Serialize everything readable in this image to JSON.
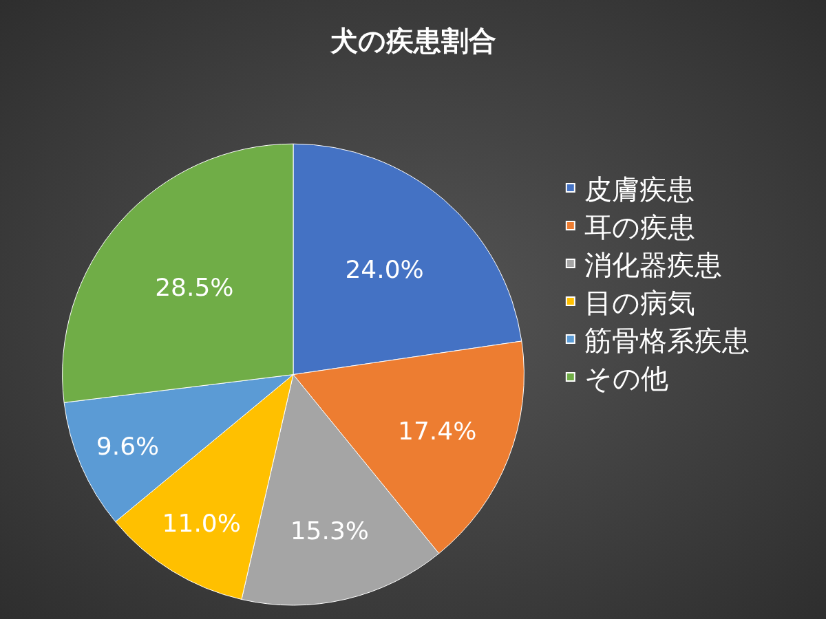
{
  "chart_data": {
    "type": "pie",
    "title": "犬の疾患割合",
    "categories": [
      "皮膚疾患",
      "耳の疾患",
      "消化器疾患",
      "目の病気",
      "筋骨格系疾患",
      "その他"
    ],
    "values": [
      24.0,
      17.4,
      15.3,
      11.0,
      9.6,
      28.5
    ],
    "colors": [
      "#4472c4",
      "#ed7d31",
      "#a5a5a5",
      "#ffc000",
      "#5b9bd5",
      "#70ad47"
    ],
    "value_labels": [
      "24.0%",
      "17.4%",
      "15.3%",
      "11.0%",
      "9.6%",
      "28.5%"
    ],
    "legend": "right"
  }
}
